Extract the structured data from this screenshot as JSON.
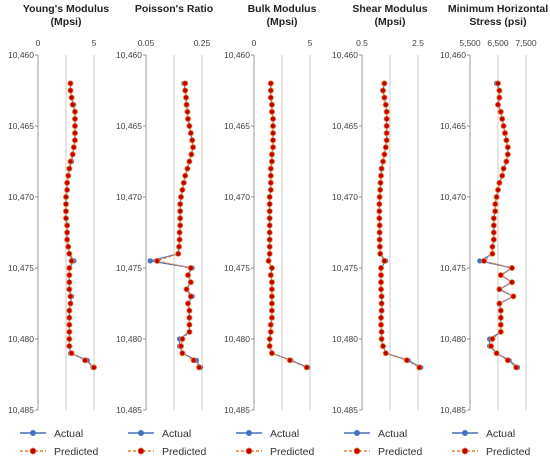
{
  "colors": {
    "actual": "#4472C4",
    "predicted_line": "#ED7D31",
    "predicted_marker": "#C00000",
    "axis": "#808080",
    "grid": "#BFBFBF"
  },
  "legend": {
    "actual": "Actual",
    "predicted": "Predicted"
  },
  "chart_data": [
    {
      "type": "line",
      "title": [
        "Young's Modulus",
        "(Mpsi)"
      ],
      "xlim": [
        0,
        5
      ],
      "xticks": [
        0,
        2.5,
        5
      ],
      "xtick_labels": [
        "0",
        "",
        "5"
      ],
      "ylim": [
        10460,
        10485
      ],
      "yticks": [
        10460,
        10465,
        10470,
        10475,
        10480,
        10485
      ],
      "ytick_labels": [
        "10,460",
        "10,465",
        "10,470",
        "10,475",
        "10,480",
        "10,485"
      ],
      "y_inverted": true,
      "grid": "vertical",
      "depth": [
        10462,
        10462.5,
        10463,
        10463.5,
        10464,
        10464.5,
        10465,
        10465.5,
        10466,
        10466.5,
        10467,
        10467.5,
        10468,
        10468.5,
        10469,
        10469.5,
        10470,
        10470.5,
        10471,
        10471.5,
        10472,
        10472.5,
        10473,
        10473.5,
        10474,
        10474.5,
        10475,
        10475.5,
        10476,
        10476.5,
        10477,
        10477.5,
        10478,
        10478.5,
        10479,
        10479.5,
        10480,
        10480.5,
        10481,
        10481.5,
        10482
      ],
      "series": [
        {
          "name": "Actual",
          "values": [
            2.9,
            2.9,
            3.0,
            3.2,
            3.3,
            3.3,
            3.3,
            3.3,
            3.3,
            3.2,
            3.1,
            3.0,
            2.8,
            2.7,
            2.6,
            2.6,
            2.5,
            2.5,
            2.5,
            2.5,
            2.6,
            2.6,
            2.6,
            2.7,
            2.8,
            3.2,
            2.8,
            2.8,
            2.8,
            2.8,
            3.0,
            2.9,
            2.8,
            2.8,
            2.8,
            2.8,
            2.8,
            2.8,
            2.9,
            4.4,
            4.9
          ]
        },
        {
          "name": "Predicted",
          "values": [
            2.9,
            2.9,
            3.0,
            3.1,
            3.3,
            3.3,
            3.3,
            3.3,
            3.3,
            3.2,
            3.1,
            2.9,
            2.8,
            2.7,
            2.6,
            2.6,
            2.5,
            2.5,
            2.5,
            2.5,
            2.6,
            2.6,
            2.6,
            2.7,
            2.8,
            3.0,
            2.8,
            2.8,
            2.8,
            2.8,
            2.9,
            2.9,
            2.8,
            2.8,
            2.8,
            2.8,
            2.8,
            2.8,
            3.0,
            4.2,
            5.0
          ]
        }
      ]
    },
    {
      "type": "line",
      "title": [
        "Poisson's Ratio",
        ""
      ],
      "xlim": [
        0.05,
        0.25
      ],
      "xticks": [
        0.05,
        0.15,
        0.25
      ],
      "xtick_labels": [
        "0.05",
        "",
        "0.25"
      ],
      "ylim": [
        10460,
        10485
      ],
      "yticks": [
        10460,
        10465,
        10470,
        10475,
        10480,
        10485
      ],
      "ytick_labels": [
        "10,460",
        "10,465",
        "10,470",
        "10,475",
        "10,480",
        "10,485"
      ],
      "y_inverted": true,
      "grid": "vertical",
      "depth": [
        10462,
        10462.5,
        10463,
        10463.5,
        10464,
        10464.5,
        10465,
        10465.5,
        10466,
        10466.5,
        10467,
        10467.5,
        10468,
        10468.5,
        10469,
        10469.5,
        10470,
        10470.5,
        10471,
        10471.5,
        10472,
        10472.5,
        10473,
        10473.5,
        10474,
        10474.5,
        10475,
        10475.5,
        10476,
        10476.5,
        10477,
        10477.5,
        10478,
        10478.5,
        10479,
        10479.5,
        10480,
        10480.5,
        10481,
        10481.5,
        10482
      ],
      "series": [
        {
          "name": "Actual",
          "values": [
            0.185,
            0.19,
            0.193,
            0.195,
            0.198,
            0.2,
            0.205,
            0.21,
            0.215,
            0.218,
            0.212,
            0.205,
            0.198,
            0.19,
            0.185,
            0.18,
            0.175,
            0.172,
            0.172,
            0.172,
            0.172,
            0.17,
            0.17,
            0.168,
            0.165,
            0.065,
            0.215,
            0.2,
            0.21,
            0.195,
            0.215,
            0.2,
            0.205,
            0.205,
            0.205,
            0.205,
            0.17,
            0.17,
            0.18,
            0.23,
            0.245
          ]
        },
        {
          "name": "Predicted",
          "values": [
            0.19,
            0.19,
            0.193,
            0.195,
            0.198,
            0.2,
            0.205,
            0.21,
            0.215,
            0.218,
            0.212,
            0.205,
            0.198,
            0.19,
            0.185,
            0.18,
            0.175,
            0.172,
            0.172,
            0.172,
            0.172,
            0.17,
            0.17,
            0.168,
            0.165,
            0.09,
            0.21,
            0.2,
            0.21,
            0.195,
            0.21,
            0.2,
            0.205,
            0.205,
            0.205,
            0.205,
            0.18,
            0.175,
            0.18,
            0.22,
            0.24
          ]
        }
      ]
    },
    {
      "type": "line",
      "title": [
        "Bulk Modulus",
        "(Mpsi)"
      ],
      "xlim": [
        0,
        5
      ],
      "xticks": [
        0,
        2.5,
        5
      ],
      "xtick_labels": [
        "0",
        "",
        "5"
      ],
      "ylim": [
        10460,
        10485
      ],
      "yticks": [
        10460,
        10465,
        10470,
        10475,
        10480,
        10485
      ],
      "ytick_labels": [
        "10,460",
        "10,465",
        "10,470",
        "10,475",
        "10,480",
        "10,485"
      ],
      "y_inverted": true,
      "grid": "vertical",
      "depth": [
        10462,
        10462.5,
        10463,
        10463.5,
        10464,
        10464.5,
        10465,
        10465.5,
        10466,
        10466.5,
        10467,
        10467.5,
        10468,
        10468.5,
        10469,
        10469.5,
        10470,
        10470.5,
        10471,
        10471.5,
        10472,
        10472.5,
        10473,
        10473.5,
        10474,
        10474.5,
        10475,
        10475.5,
        10476,
        10476.5,
        10477,
        10477.5,
        10478,
        10478.5,
        10479,
        10479.5,
        10480,
        10480.5,
        10481,
        10481.5,
        10482
      ],
      "series": [
        {
          "name": "Actual",
          "values": [
            1.5,
            1.5,
            1.5,
            1.6,
            1.6,
            1.7,
            1.7,
            1.7,
            1.7,
            1.7,
            1.6,
            1.6,
            1.5,
            1.5,
            1.5,
            1.5,
            1.4,
            1.4,
            1.4,
            1.4,
            1.4,
            1.4,
            1.4,
            1.4,
            1.4,
            1.3,
            1.6,
            1.5,
            1.6,
            1.6,
            1.6,
            1.6,
            1.6,
            1.6,
            1.5,
            1.5,
            1.4,
            1.4,
            1.6,
            3.3,
            4.8
          ]
        },
        {
          "name": "Predicted",
          "values": [
            1.5,
            1.5,
            1.5,
            1.6,
            1.6,
            1.7,
            1.7,
            1.7,
            1.7,
            1.7,
            1.6,
            1.6,
            1.5,
            1.5,
            1.5,
            1.5,
            1.4,
            1.4,
            1.4,
            1.4,
            1.4,
            1.4,
            1.4,
            1.4,
            1.4,
            1.3,
            1.6,
            1.5,
            1.6,
            1.6,
            1.6,
            1.6,
            1.6,
            1.6,
            1.5,
            1.5,
            1.4,
            1.4,
            1.6,
            3.2,
            4.7
          ]
        }
      ]
    },
    {
      "type": "line",
      "title": [
        "Shear Modulus",
        "(Mpsi)"
      ],
      "xlim": [
        0.5,
        2.5
      ],
      "xticks": [
        0.5,
        1.5,
        2.5
      ],
      "xtick_labels": [
        "0.5",
        "",
        "2.5"
      ],
      "ylim": [
        10460,
        10485
      ],
      "yticks": [
        10460,
        10465,
        10470,
        10475,
        10480,
        10485
      ],
      "ytick_labels": [
        "10,460",
        "10,465",
        "10,470",
        "10,475",
        "10,480",
        "10,485"
      ],
      "y_inverted": true,
      "grid": "vertical",
      "depth": [
        10462,
        10462.5,
        10463,
        10463.5,
        10464,
        10464.5,
        10465,
        10465.5,
        10466,
        10466.5,
        10467,
        10467.5,
        10468,
        10468.5,
        10469,
        10469.5,
        10470,
        10470.5,
        10471,
        10471.5,
        10472,
        10472.5,
        10473,
        10473.5,
        10474,
        10474.5,
        10475,
        10475.5,
        10476,
        10476.5,
        10477,
        10477.5,
        10478,
        10478.5,
        10479,
        10479.5,
        10480,
        10480.5,
        10481,
        10481.5,
        10482
      ],
      "series": [
        {
          "name": "Actual",
          "values": [
            1.3,
            1.25,
            1.3,
            1.35,
            1.38,
            1.38,
            1.38,
            1.38,
            1.38,
            1.35,
            1.3,
            1.25,
            1.2,
            1.18,
            1.16,
            1.15,
            1.13,
            1.12,
            1.12,
            1.12,
            1.13,
            1.13,
            1.13,
            1.14,
            1.15,
            1.35,
            1.18,
            1.18,
            1.18,
            1.18,
            1.2,
            1.2,
            1.2,
            1.18,
            1.18,
            1.2,
            1.2,
            1.25,
            1.35,
            2.15,
            2.6
          ]
        },
        {
          "name": "Predicted",
          "values": [
            1.3,
            1.25,
            1.3,
            1.35,
            1.38,
            1.38,
            1.38,
            1.38,
            1.38,
            1.35,
            1.3,
            1.25,
            1.2,
            1.18,
            1.16,
            1.15,
            1.13,
            1.12,
            1.12,
            1.12,
            1.13,
            1.13,
            1.13,
            1.14,
            1.15,
            1.3,
            1.18,
            1.18,
            1.18,
            1.18,
            1.2,
            1.2,
            1.2,
            1.18,
            1.18,
            1.2,
            1.2,
            1.25,
            1.35,
            2.1,
            2.55
          ]
        }
      ]
    },
    {
      "type": "line",
      "title": [
        "Minimum Horizontal",
        "Stress (psi)"
      ],
      "xlim": [
        5500,
        7500
      ],
      "xticks": [
        5500,
        6500,
        7500
      ],
      "xtick_labels": [
        "5,500",
        "6,500",
        "7,500"
      ],
      "ylim": [
        10460,
        10485
      ],
      "yticks": [
        10460,
        10465,
        10470,
        10475,
        10480,
        10485
      ],
      "ytick_labels": [
        "10,460",
        "10,465",
        "10,470",
        "10,475",
        "10,480",
        "10,485"
      ],
      "y_inverted": true,
      "grid": "vertical",
      "depth": [
        10462,
        10462.5,
        10463,
        10463.5,
        10464,
        10464.5,
        10465,
        10465.5,
        10466,
        10466.5,
        10467,
        10467.5,
        10468,
        10468.5,
        10469,
        10469.5,
        10470,
        10470.5,
        10471,
        10471.5,
        10472,
        10472.5,
        10473,
        10473.5,
        10474,
        10474.5,
        10475,
        10475.5,
        10476,
        10476.5,
        10477,
        10477.5,
        10478,
        10478.5,
        10479,
        10479.5,
        10480,
        10480.5,
        10481,
        10481.5,
        10482
      ],
      "series": [
        {
          "name": "Actual",
          "values": [
            6450,
            6550,
            6550,
            6500,
            6600,
            6650,
            6700,
            6750,
            6800,
            6850,
            6850,
            6800,
            6700,
            6650,
            6550,
            6500,
            6450,
            6400,
            6400,
            6350,
            6350,
            6350,
            6350,
            6300,
            6300,
            5850,
            7000,
            6600,
            7000,
            6550,
            7050,
            6550,
            6600,
            6600,
            6600,
            6600,
            6200,
            6200,
            6450,
            6900,
            7200
          ]
        },
        {
          "name": "Predicted",
          "values": [
            6500,
            6550,
            6550,
            6500,
            6600,
            6650,
            6700,
            6750,
            6800,
            6850,
            6850,
            6800,
            6700,
            6650,
            6550,
            6500,
            6450,
            6400,
            6400,
            6350,
            6350,
            6350,
            6350,
            6300,
            6300,
            6000,
            7000,
            6600,
            7000,
            6550,
            7050,
            6550,
            6600,
            6600,
            6600,
            6600,
            6300,
            6250,
            6450,
            6850,
            7150
          ]
        }
      ]
    }
  ]
}
